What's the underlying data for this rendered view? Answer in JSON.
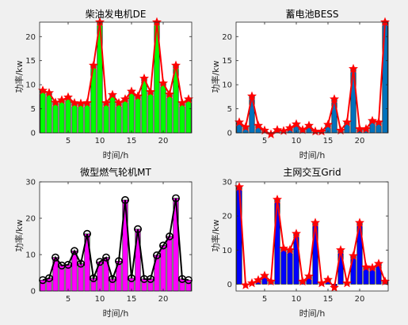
{
  "colors": {
    "background": "#f0f0f0",
    "plot_background": "#ffffff",
    "axis": "#262626",
    "line": "#ff0000"
  },
  "chart_data": [
    {
      "type": "bar",
      "overlay": "line",
      "title": "柴油发电机DE",
      "xlabel": "时间/h",
      "ylabel": "功率/kw",
      "x": [
        1,
        2,
        3,
        4,
        5,
        6,
        7,
        8,
        9,
        10,
        11,
        12,
        13,
        14,
        15,
        16,
        17,
        18,
        19,
        20,
        21,
        22,
        23,
        24
      ],
      "values": [
        8.8,
        8.3,
        6.3,
        6.8,
        7.4,
        6.2,
        6.1,
        6.2,
        14.0,
        23.0,
        6.2,
        7.9,
        6.2,
        7.0,
        8.6,
        7.6,
        11.3,
        8.5,
        23.0,
        10.3,
        8.0,
        14.0,
        6.2,
        7.0
      ],
      "xlim": [
        0.5,
        24.5
      ],
      "ylim": [
        0,
        23
      ],
      "xticks": [
        5,
        10,
        15,
        20
      ],
      "yticks": [
        0,
        5,
        10,
        15,
        20
      ],
      "bar_color": "#00ff00",
      "marker": "star",
      "marker_color": "#ff0000",
      "line_color": "#ff0000",
      "grid": false
    },
    {
      "type": "bar",
      "overlay": "line",
      "title": "蓄电池BESS",
      "xlabel": "时间/h",
      "ylabel": "功率/kw",
      "x": [
        1,
        2,
        3,
        4,
        5,
        6,
        7,
        8,
        9,
        10,
        11,
        12,
        13,
        14,
        15,
        16,
        17,
        18,
        19,
        20,
        21,
        22,
        23,
        24
      ],
      "values": [
        2.2,
        1.2,
        7.6,
        1.5,
        0.5,
        -0.3,
        0.6,
        0.4,
        1.0,
        1.8,
        0.6,
        1.5,
        0.3,
        0.3,
        1.7,
        7.0,
        0.5,
        2.2,
        13.3,
        0.8,
        0.8,
        2.5,
        2.2,
        23.0
      ],
      "xlim": [
        0.5,
        24.5
      ],
      "ylim": [
        0,
        23
      ],
      "xticks": [
        5,
        10,
        15,
        20
      ],
      "yticks": [
        0,
        5,
        10,
        15,
        20
      ],
      "bar_color": "#0072bd",
      "marker": "star",
      "marker_color": "#ff0000",
      "line_color": "#ff0000",
      "grid": false
    },
    {
      "type": "bar",
      "overlay": "line",
      "title": "微型燃气轮机MT",
      "xlabel": "时间/h",
      "ylabel": "功率/kw",
      "x": [
        1,
        2,
        3,
        4,
        5,
        6,
        7,
        8,
        9,
        10,
        11,
        12,
        13,
        14,
        15,
        16,
        17,
        18,
        19,
        20,
        21,
        22,
        23,
        24
      ],
      "values": [
        3.0,
        3.5,
        9.2,
        7.0,
        7.2,
        11.0,
        7.5,
        15.7,
        3.5,
        8.0,
        9.2,
        3.3,
        8.2,
        25.0,
        3.5,
        17.0,
        3.3,
        3.3,
        9.8,
        12.5,
        15.0,
        25.5,
        3.3,
        3.0
      ],
      "xlim": [
        0.5,
        24.5
      ],
      "ylim": [
        0,
        30
      ],
      "xticks": [
        5,
        10,
        15,
        20
      ],
      "yticks": [
        0,
        10,
        20,
        30
      ],
      "bar_color": "#ff00ff",
      "marker": "circle",
      "marker_color": "#000000",
      "line_color": "#000000",
      "grid": false
    },
    {
      "type": "bar",
      "overlay": "line",
      "title": "主网交互Grid",
      "xlabel": "时间/h",
      "ylabel": "功率/kw",
      "x": [
        1,
        2,
        3,
        4,
        5,
        6,
        7,
        8,
        9,
        10,
        11,
        12,
        13,
        14,
        15,
        16,
        17,
        18,
        19,
        20,
        21,
        22,
        23,
        24
      ],
      "values": [
        28.5,
        -0.3,
        0.3,
        1.2,
        2.5,
        0.8,
        24.8,
        10.5,
        10.0,
        14.8,
        0.8,
        2.3,
        18.0,
        0.3,
        1.3,
        -1.0,
        10.0,
        0.3,
        8.3,
        18.0,
        5.0,
        4.8,
        6.0,
        0.8
      ],
      "xlim": [
        0.5,
        24.5
      ],
      "ylim": [
        -2,
        30
      ],
      "xticks": [
        5,
        10,
        15,
        20
      ],
      "yticks": [
        0,
        10,
        20,
        30
      ],
      "bar_color": "#0000ff",
      "marker": "star",
      "marker_color": "#ff0000",
      "line_color": "#ff0000",
      "grid": false
    }
  ]
}
